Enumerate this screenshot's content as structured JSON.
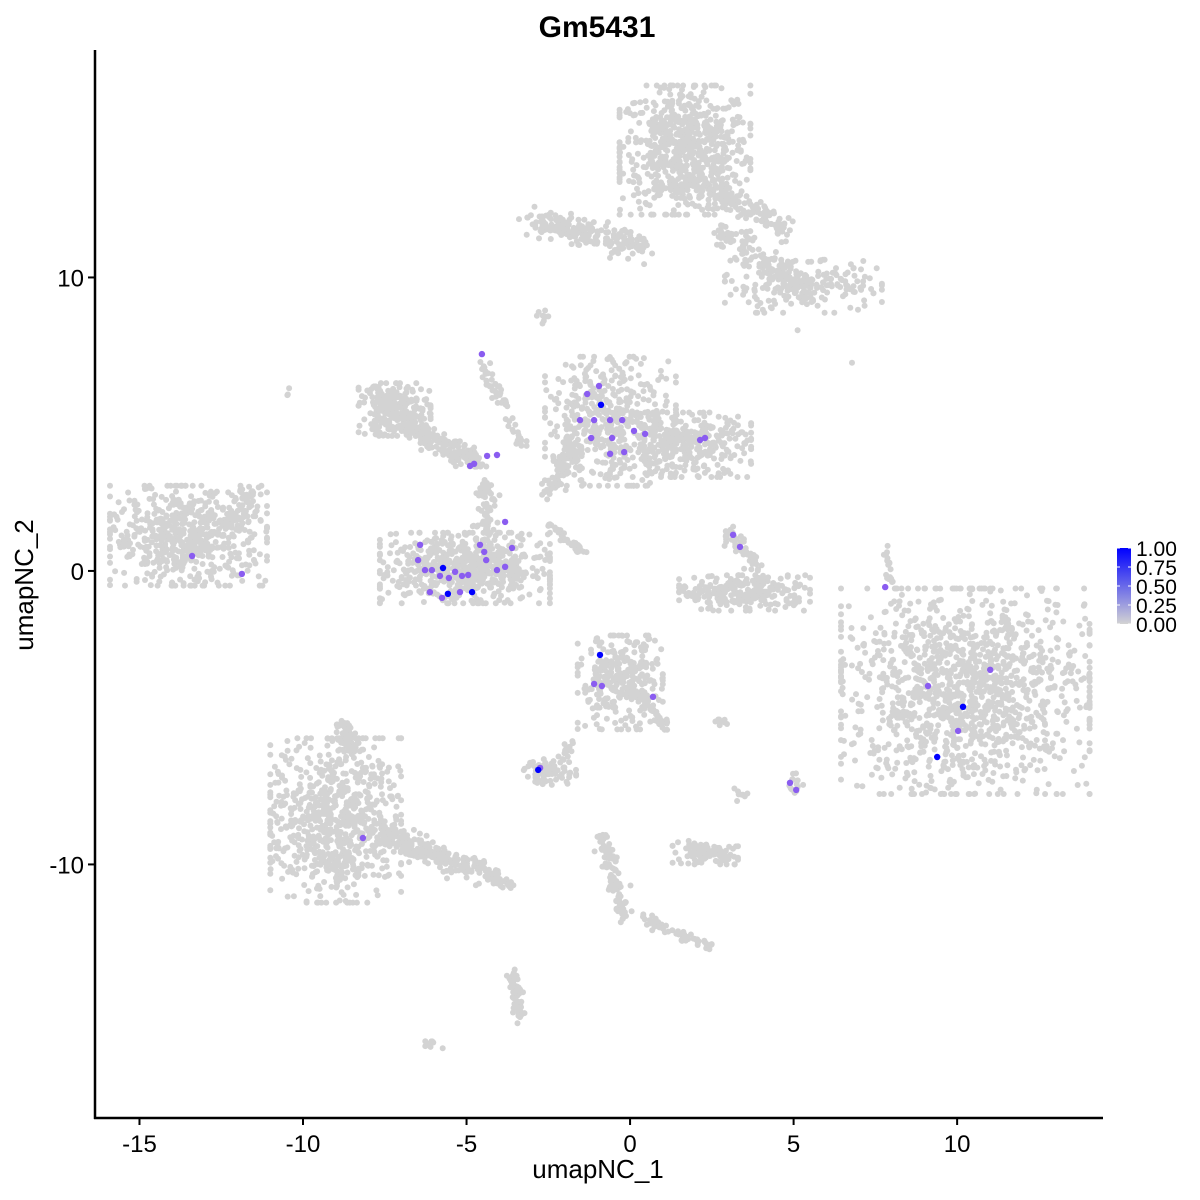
{
  "chart_data": {
    "type": "scatter",
    "title": "Gm5431",
    "xlabel": "umapNC_1",
    "ylabel": "umapNC_2",
    "xlim": [
      -16.36,
      14.46
    ],
    "ylim": [
      -18.64,
      17.75
    ],
    "xticks": [
      -15,
      -10,
      -5,
      0,
      5,
      10
    ],
    "yticks": [
      -10,
      0,
      10
    ],
    "grid": false,
    "colors": {
      "low": "#d3d3d3",
      "high": "#0000ff"
    },
    "legend": {
      "placement": "right",
      "type": "colorbar",
      "labels": [
        "1.00",
        "0.75",
        "0.50",
        "0.25",
        "0.00"
      ],
      "range": [
        0,
        1
      ]
    },
    "background_clusters": [
      {
        "cx": 1.68,
        "cy": 14.34,
        "sx": 1.0,
        "sy": 1.1,
        "n": 700
      },
      {
        "from": [
          -3.06,
          11.93
        ],
        "to": [
          0.31,
          11.07
        ],
        "w": 0.45,
        "n": 220
      },
      {
        "from": [
          1.83,
          13.32
        ],
        "to": [
          4.89,
          11.62
        ],
        "w": 0.4,
        "n": 150
      },
      {
        "from": [
          2.75,
          11.62
        ],
        "to": [
          5.2,
          9.6
        ],
        "w": 0.4,
        "n": 140
      },
      {
        "cx": 5.3,
        "cy": 9.7,
        "sx": 1.2,
        "sy": 0.45,
        "n": 200
      },
      {
        "cx": -2.75,
        "cy": 8.72,
        "sx": 0.2,
        "sy": 0.15,
        "n": 8
      },
      {
        "cx": -13.5,
        "cy": 1.2,
        "sx": 1.2,
        "sy": 0.85,
        "n": 600
      },
      {
        "from": [
          -12.3,
          1.5
        ],
        "to": [
          -11.5,
          2.76
        ],
        "w": 0.3,
        "n": 40
      },
      {
        "cx": -7.2,
        "cy": 5.5,
        "sx": 0.55,
        "sy": 0.45,
        "n": 250
      },
      {
        "from": [
          -7.0,
          5.0
        ],
        "to": [
          -4.6,
          3.7
        ],
        "w": 0.35,
        "n": 200
      },
      {
        "from": [
          -4.6,
          7.3
        ],
        "to": [
          -3.3,
          4.3
        ],
        "w": 0.2,
        "n": 60
      },
      {
        "from": [
          -4.4,
          3.0
        ],
        "to": [
          -4.4,
          1.0
        ],
        "w": 0.3,
        "n": 70
      },
      {
        "cx": -5.05,
        "cy": 0.1,
        "sx": 1.3,
        "sy": 0.6,
        "n": 650
      },
      {
        "cx": -0.6,
        "cy": 5.1,
        "sx": 1.0,
        "sy": 1.1,
        "n": 450
      },
      {
        "cx": 1.7,
        "cy": 4.3,
        "sx": 1.0,
        "sy": 0.55,
        "n": 350
      },
      {
        "from": [
          -1.6,
          4.3
        ],
        "to": [
          -2.6,
          2.6
        ],
        "w": 0.35,
        "n": 80
      },
      {
        "from": [
          -2.5,
          1.6
        ],
        "to": [
          -1.4,
          0.6
        ],
        "w": 0.15,
        "n": 40
      },
      {
        "cx": 3.5,
        "cy": -0.75,
        "sx": 1.0,
        "sy": 0.3,
        "n": 250
      },
      {
        "from": [
          3.0,
          1.3
        ],
        "to": [
          4.0,
          0.0
        ],
        "w": 0.25,
        "n": 60
      },
      {
        "cx": 10.25,
        "cy": -4.1,
        "sx": 1.9,
        "sy": 1.75,
        "n": 1300
      },
      {
        "from": [
          7.8,
          0.9
        ],
        "to": [
          7.95,
          -0.4
        ],
        "w": 0.1,
        "n": 20
      },
      {
        "cx": -9.0,
        "cy": -8.5,
        "sx": 1.0,
        "sy": 1.4,
        "n": 750
      },
      {
        "from": [
          -8.6,
          -6.0
        ],
        "to": [
          -8.8,
          -5.2
        ],
        "w": 0.3,
        "n": 60
      },
      {
        "from": [
          -7.6,
          -9.0
        ],
        "to": [
          -3.8,
          -10.5
        ],
        "w": 0.4,
        "n": 250
      },
      {
        "cx": -0.3,
        "cy": -3.8,
        "sx": 0.65,
        "sy": 0.8,
        "n": 300
      },
      {
        "from": [
          0.3,
          -4.2
        ],
        "to": [
          1.2,
          -5.5
        ],
        "w": 0.2,
        "n": 40
      },
      {
        "cx": -2.45,
        "cy": -6.85,
        "sx": 0.4,
        "sy": 0.22,
        "n": 70
      },
      {
        "from": [
          -2.2,
          -6.6
        ],
        "to": [
          -1.7,
          -5.7
        ],
        "w": 0.12,
        "n": 15
      },
      {
        "cx": 2.3,
        "cy": -9.6,
        "sx": 0.5,
        "sy": 0.2,
        "n": 110
      },
      {
        "from": [
          -0.85,
          -9.0
        ],
        "to": [
          -0.15,
          -11.9
        ],
        "w": 0.22,
        "n": 110
      },
      {
        "from": [
          0.3,
          -11.8
        ],
        "to": [
          2.45,
          -12.8
        ],
        "w": 0.18,
        "n": 60
      },
      {
        "from": [
          -3.6,
          -13.6
        ],
        "to": [
          -3.36,
          -15.3
        ],
        "w": 0.18,
        "n": 70
      },
      {
        "cx": -5.96,
        "cy": -16.1,
        "sx": 0.15,
        "sy": 0.08,
        "n": 8
      },
      {
        "cx": 5.05,
        "cy": -7.3,
        "sx": 0.12,
        "sy": 0.2,
        "n": 15
      },
      {
        "cx": 3.36,
        "cy": -7.6,
        "sx": 0.12,
        "sy": 0.12,
        "n": 8
      },
      {
        "cx": 2.75,
        "cy": -5.1,
        "sx": 0.18,
        "sy": 0.08,
        "n": 8
      },
      {
        "cx": -10.5,
        "cy": 6.1,
        "sx": 0.08,
        "sy": 0.08,
        "n": 3
      },
      {
        "cx": 6.8,
        "cy": 7.1,
        "sx": 0.03,
        "sy": 0.03,
        "n": 1
      },
      {
        "cx": 5.1,
        "cy": 8.2,
        "sx": 0.03,
        "sy": 0.03,
        "n": 1
      }
    ],
    "expressing_cells": [
      {
        "x": -4.53,
        "y": 7.39,
        "v": 0.5
      },
      {
        "x": -4.89,
        "y": 3.58,
        "v": 0.5
      },
      {
        "x": -4.77,
        "y": 3.65,
        "v": 0.5
      },
      {
        "x": -4.37,
        "y": 3.92,
        "v": 0.5
      },
      {
        "x": -4.07,
        "y": 3.95,
        "v": 0.5
      },
      {
        "x": -6.42,
        "y": 0.89,
        "v": 0.5
      },
      {
        "x": -6.48,
        "y": 0.37,
        "v": 0.5
      },
      {
        "x": -6.27,
        "y": 0.03,
        "v": 0.5
      },
      {
        "x": -6.06,
        "y": 0.03,
        "v": 0.5
      },
      {
        "x": -5.81,
        "y": -0.17,
        "v": 0.5
      },
      {
        "x": -5.54,
        "y": -0.24,
        "v": 0.5
      },
      {
        "x": -5.35,
        "y": -0.03,
        "v": 0.5
      },
      {
        "x": -5.14,
        "y": -0.17,
        "v": 0.5
      },
      {
        "x": -4.95,
        "y": -0.14,
        "v": 0.5
      },
      {
        "x": -4.59,
        "y": 0.89,
        "v": 0.5
      },
      {
        "x": -4.46,
        "y": 0.65,
        "v": 0.5
      },
      {
        "x": -4.4,
        "y": 0.37,
        "v": 0.5
      },
      {
        "x": -3.82,
        "y": 1.67,
        "v": 0.5
      },
      {
        "x": -3.61,
        "y": 0.78,
        "v": 0.5
      },
      {
        "x": -3.82,
        "y": 0.14,
        "v": 0.5
      },
      {
        "x": -4.07,
        "y": 0.03,
        "v": 0.5
      },
      {
        "x": -5.2,
        "y": -0.72,
        "v": 0.5
      },
      {
        "x": -6.12,
        "y": -0.72,
        "v": 0.5
      },
      {
        "x": -5.75,
        "y": -0.92,
        "v": 0.5
      },
      {
        "x": -13.39,
        "y": 0.51,
        "v": 0.5
      },
      {
        "x": -11.87,
        "y": -0.1,
        "v": 0.5
      },
      {
        "x": -1.31,
        "y": 6.03,
        "v": 0.5
      },
      {
        "x": -0.95,
        "y": 6.3,
        "v": 0.5
      },
      {
        "x": -1.53,
        "y": 5.14,
        "v": 0.5
      },
      {
        "x": -1.1,
        "y": 5.14,
        "v": 0.5
      },
      {
        "x": -0.61,
        "y": 5.14,
        "v": 0.5
      },
      {
        "x": -0.24,
        "y": 5.14,
        "v": 0.5
      },
      {
        "x": -1.19,
        "y": 4.53,
        "v": 0.5
      },
      {
        "x": -0.55,
        "y": 4.53,
        "v": 0.5
      },
      {
        "x": 0.12,
        "y": 4.77,
        "v": 0.5
      },
      {
        "x": 0.46,
        "y": 4.67,
        "v": 0.5
      },
      {
        "x": 2.14,
        "y": 4.46,
        "v": 0.5
      },
      {
        "x": 2.29,
        "y": 4.53,
        "v": 0.5
      },
      {
        "x": -0.61,
        "y": 3.99,
        "v": 0.5
      },
      {
        "x": -0.18,
        "y": 4.05,
        "v": 0.5
      },
      {
        "x": 3.15,
        "y": 1.23,
        "v": 0.5
      },
      {
        "x": 3.36,
        "y": 0.82,
        "v": 0.5
      },
      {
        "x": -1.1,
        "y": -3.85,
        "v": 0.5
      },
      {
        "x": -0.86,
        "y": -3.92,
        "v": 0.5
      },
      {
        "x": 0.7,
        "y": -4.29,
        "v": 0.5
      },
      {
        "x": 7.8,
        "y": -0.55,
        "v": 0.5
      },
      {
        "x": 9.11,
        "y": -3.92,
        "v": 0.5
      },
      {
        "x": 10.03,
        "y": -5.45,
        "v": 0.5
      },
      {
        "x": 11.01,
        "y": -3.37,
        "v": 0.5
      },
      {
        "x": -2.75,
        "y": -6.71,
        "v": 0.5
      },
      {
        "x": 5.08,
        "y": -7.46,
        "v": 0.5
      },
      {
        "x": 4.89,
        "y": -7.22,
        "v": 0.5
      },
      {
        "x": -8.17,
        "y": -9.1,
        "v": 0.5
      },
      {
        "x": -5.72,
        "y": 0.1,
        "v": 1.0
      },
      {
        "x": -5.57,
        "y": -0.78,
        "v": 1.0
      },
      {
        "x": -4.83,
        "y": -0.72,
        "v": 1.0
      },
      {
        "x": -0.89,
        "y": 5.66,
        "v": 1.0
      },
      {
        "x": -0.92,
        "y": -2.86,
        "v": 1.0
      },
      {
        "x": -2.81,
        "y": -6.78,
        "v": 1.0
      },
      {
        "x": 10.18,
        "y": -4.63,
        "v": 1.0
      },
      {
        "x": 9.39,
        "y": -6.34,
        "v": 1.0
      }
    ]
  }
}
